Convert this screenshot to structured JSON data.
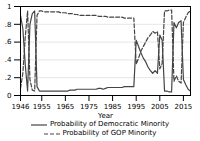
{
  "chart_data": {
    "type": "line",
    "xlabel": "Year",
    "xlim": [
      1946,
      2018
    ],
    "ylim": [
      0,
      1.0
    ],
    "xticks": [
      1946,
      1955,
      1965,
      1975,
      1985,
      1995,
      2005,
      2015
    ],
    "yticks": [
      0,
      {
        "value": 0.2,
        "label": ".2"
      },
      {
        "value": 0.4,
        "label": ".4"
      },
      {
        "value": 0.6,
        "label": ".6"
      },
      {
        "value": 0.8,
        "label": ".8"
      },
      1
    ],
    "grid": "y",
    "legend": "bottom",
    "x": [
      1946,
      1947,
      1948,
      1949,
      1950,
      1951,
      1952,
      1953,
      1954,
      1955,
      1956,
      1957,
      1958,
      1959,
      1960,
      1961,
      1962,
      1963,
      1964,
      1965,
      1966,
      1967,
      1968,
      1969,
      1970,
      1971,
      1972,
      1973,
      1974,
      1975,
      1976,
      1977,
      1978,
      1979,
      1980,
      1981,
      1982,
      1983,
      1984,
      1985,
      1986,
      1987,
      1988,
      1989,
      1990,
      1991,
      1992,
      1993,
      1994,
      1995,
      1996,
      1997,
      1998,
      1999,
      2000,
      2001,
      2002,
      2003,
      2004,
      2005,
      2006,
      2007,
      2008,
      2009,
      2010,
      2011,
      2012,
      2013,
      2014,
      2015,
      2016,
      2017,
      2018
    ],
    "series": [
      {
        "name": "Probability of Democratic Minority",
        "color": "#444444",
        "line_style": "solid",
        "values": [
          0.9,
          0.75,
          0.35,
          0.05,
          0.8,
          0.92,
          0.95,
          0.1,
          0.05,
          0.05,
          0.05,
          0.05,
          0.05,
          0.05,
          0.05,
          0.05,
          0.05,
          0.05,
          0.05,
          0.05,
          0.05,
          0.06,
          0.06,
          0.06,
          0.07,
          0.07,
          0.07,
          0.07,
          0.07,
          0.07,
          0.07,
          0.07,
          0.07,
          0.08,
          0.08,
          0.07,
          0.08,
          0.09,
          0.09,
          0.09,
          0.09,
          0.09,
          0.09,
          0.09,
          0.1,
          0.1,
          0.1,
          0.1,
          0.1,
          0.62,
          0.55,
          0.48,
          0.42,
          0.38,
          0.32,
          0.28,
          0.25,
          0.28,
          0.25,
          0.68,
          0.62,
          0.05,
          0.05,
          0.04,
          0.04,
          0.82,
          0.76,
          0.82,
          0.84,
          0.18,
          0.12,
          0.07,
          0.05
        ]
      },
      {
        "name": "Probability of GOP Minority",
        "color": "#444444",
        "line_style": "dashed",
        "values": [
          0.08,
          0.25,
          0.65,
          0.95,
          0.18,
          0.06,
          0.05,
          0.9,
          0.95,
          0.95,
          0.94,
          0.94,
          0.94,
          0.94,
          0.94,
          0.94,
          0.94,
          0.93,
          0.93,
          0.93,
          0.92,
          0.92,
          0.92,
          0.91,
          0.91,
          0.9,
          0.9,
          0.9,
          0.9,
          0.9,
          0.9,
          0.9,
          0.9,
          0.89,
          0.89,
          0.89,
          0.89,
          0.88,
          0.88,
          0.88,
          0.88,
          0.88,
          0.88,
          0.88,
          0.87,
          0.87,
          0.87,
          0.87,
          0.87,
          0.35,
          0.42,
          0.5,
          0.55,
          0.6,
          0.65,
          0.68,
          0.72,
          0.7,
          0.72,
          0.3,
          0.36,
          0.95,
          0.95,
          0.96,
          0.96,
          0.16,
          0.22,
          0.16,
          0.14,
          0.82,
          0.88,
          0.93,
          0.95
        ]
      }
    ]
  }
}
